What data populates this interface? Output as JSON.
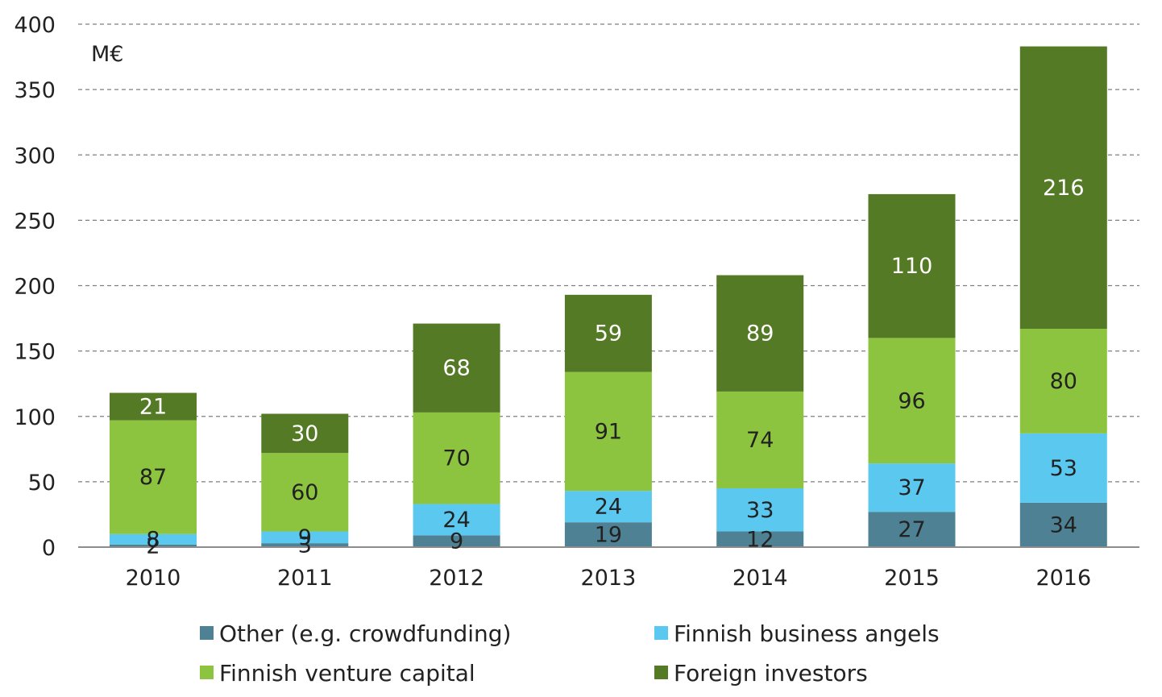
{
  "chart_data": {
    "type": "bar",
    "stacked": true,
    "unit": "M€",
    "categories": [
      "2010",
      "2011",
      "2012",
      "2013",
      "2014",
      "2015",
      "2016"
    ],
    "ylim": [
      0,
      400
    ],
    "yticks": [
      0,
      50,
      100,
      150,
      200,
      250,
      300,
      350,
      400
    ],
    "grid": true,
    "legend_position": "bottom",
    "series": [
      {
        "name": "Other (e.g. crowdfunding)",
        "color": "#4f8194",
        "label_color": "#222222",
        "values": [
          2,
          3,
          9,
          19,
          12,
          27,
          34
        ]
      },
      {
        "name": "Finnish business angels",
        "color": "#5bc8f0",
        "label_color": "#222222",
        "values": [
          8,
          9,
          24,
          24,
          33,
          37,
          53
        ]
      },
      {
        "name": "Finnish venture capital",
        "color": "#8cc43f",
        "label_color": "#222222",
        "values": [
          87,
          60,
          70,
          91,
          74,
          96,
          80
        ]
      },
      {
        "name": "Foreign investors",
        "color": "#557a25",
        "label_color": "#ffffff",
        "values": [
          21,
          30,
          68,
          59,
          89,
          110,
          216
        ]
      }
    ]
  }
}
